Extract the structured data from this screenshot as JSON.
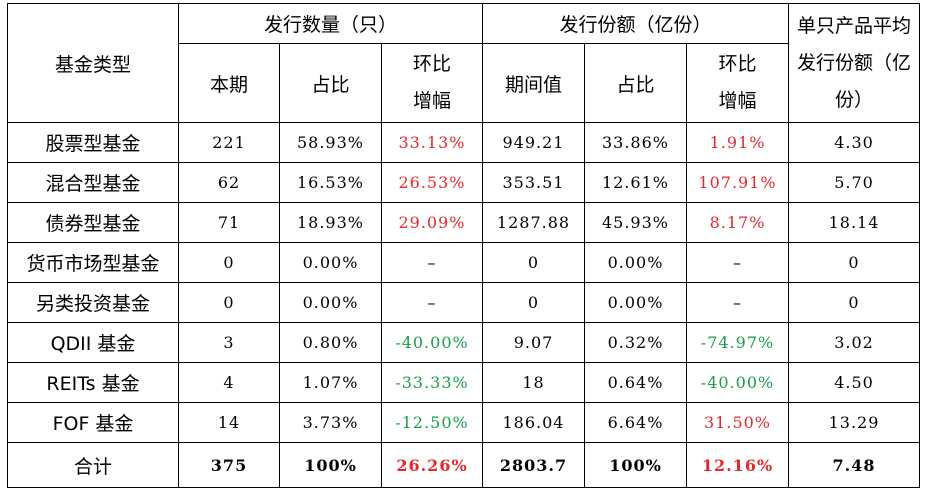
{
  "table": {
    "header": {
      "fund_type": "基金类型",
      "issue_count": "发行数量（只）",
      "issue_amount": "发行份额（亿份）",
      "avg_amount": "单只产品平均发行份额（亿份）",
      "current": "本期",
      "share": "占比",
      "mom_change": "环比增幅",
      "period_value": "期间值",
      "share2": "占比",
      "mom_change2": "环比增幅"
    },
    "rows": [
      {
        "name": "股票型基金",
        "count": "221",
        "count_share": "58.93%",
        "count_mom": "33.13%",
        "amount": "949.21",
        "amount_share": "33.86%",
        "amount_mom": "1.91%",
        "avg": "4.30"
      },
      {
        "name": "混合型基金",
        "count": "62",
        "count_share": "16.53%",
        "count_mom": "26.53%",
        "amount": "353.51",
        "amount_share": "12.61%",
        "amount_mom": "107.91%",
        "avg": "5.70"
      },
      {
        "name": "债券型基金",
        "count": "71",
        "count_share": "18.93%",
        "count_mom": "29.09%",
        "amount": "1287.88",
        "amount_share": "45.93%",
        "amount_mom": "8.17%",
        "avg": "18.14"
      },
      {
        "name": "货币市场型基金",
        "count": "0",
        "count_share": "0.00%",
        "count_mom": "–",
        "amount": "0",
        "amount_share": "0.00%",
        "amount_mom": "–",
        "avg": "0"
      },
      {
        "name": "另类投资基金",
        "count": "0",
        "count_share": "0.00%",
        "count_mom": "–",
        "amount": "0",
        "amount_share": "0.00%",
        "amount_mom": "–",
        "avg": "0"
      },
      {
        "name": "QDII 基金",
        "count": "3",
        "count_share": "0.80%",
        "count_mom": "-40.00%",
        "amount": "9.07",
        "amount_share": "0.32%",
        "amount_mom": "-74.97%",
        "avg": "3.02"
      },
      {
        "name": "REITs 基金",
        "count": "4",
        "count_share": "1.07%",
        "count_mom": "-33.33%",
        "amount": "18",
        "amount_share": "0.64%",
        "amount_mom": "-40.00%",
        "avg": "4.50"
      },
      {
        "name": "FOF 基金",
        "count": "14",
        "count_share": "3.73%",
        "count_mom": "-12.50%",
        "amount": "186.04",
        "amount_share": "6.64%",
        "amount_mom": "31.50%",
        "avg": "13.29"
      }
    ],
    "total": {
      "name": "合计",
      "count": "375",
      "count_share": "100%",
      "count_mom": "26.26%",
      "amount": "2803.7",
      "amount_share": "100%",
      "amount_mom": "12.16%",
      "avg": "7.48"
    }
  },
  "colors": {
    "increase": "#e8272c",
    "decrease": "#1a9e4a",
    "border": "#000000",
    "text": "#000000"
  }
}
